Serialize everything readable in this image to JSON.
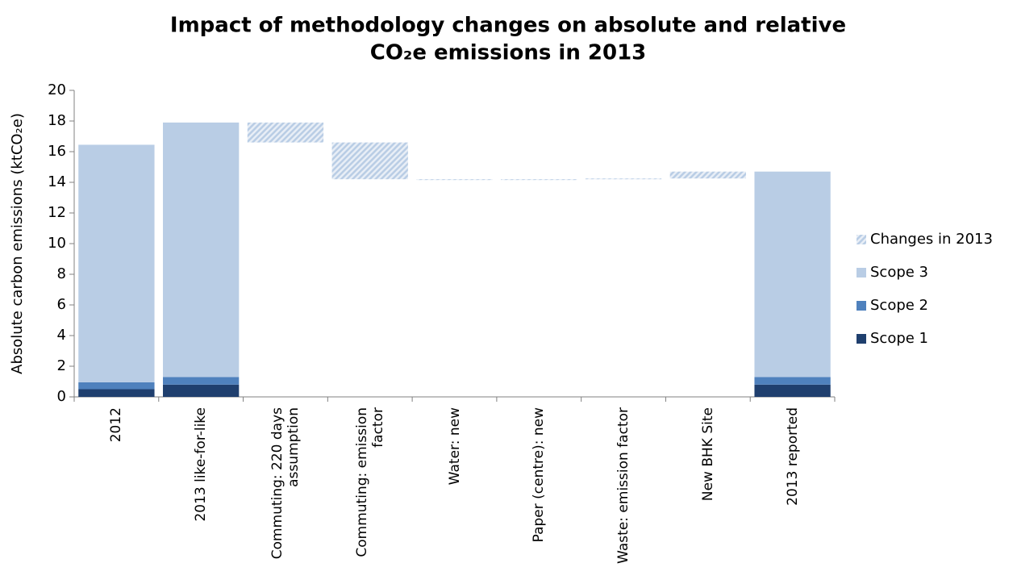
{
  "chart_data": {
    "type": "waterfall",
    "title": "Impact of methodology changes on absolute and relative",
    "title_line2": "CO₂e emissions in 2013",
    "y_label": "Absolute carbon emissions (ktCO₂e)",
    "categories": [
      "2012",
      "2013 like-for-like",
      "Commuting: 220 days assumption",
      "Commuting: emission factor",
      "Water: new",
      "Paper (centre): new",
      "Waste: emission factor",
      "New BHK Site",
      "2013 reported"
    ],
    "series": [
      {
        "name": "Scope 1",
        "color": "#1f3f6e",
        "values": [
          0.5,
          0.8,
          null,
          null,
          null,
          null,
          null,
          null,
          0.8
        ]
      },
      {
        "name": "Scope 2",
        "color": "#4f81bd",
        "values": [
          0.45,
          0.5,
          null,
          null,
          null,
          null,
          null,
          null,
          0.5
        ]
      },
      {
        "name": "Scope 3",
        "color": "#b9cde5",
        "values": [
          15.5,
          16.6,
          null,
          null,
          null,
          null,
          null,
          null,
          13.4
        ]
      },
      {
        "name": "Changes in 2013",
        "color": "#b9cde5",
        "hatched": true,
        "values": [
          null,
          null,
          -1.3,
          -2.4,
          -0.05,
          0.05,
          0.05,
          0.45,
          null
        ]
      }
    ],
    "ylim": [
      0,
      20
    ],
    "yticks": [
      0,
      2,
      4,
      6,
      8,
      10,
      12,
      14,
      16,
      18,
      20
    ],
    "grid": false,
    "legend": "right"
  }
}
